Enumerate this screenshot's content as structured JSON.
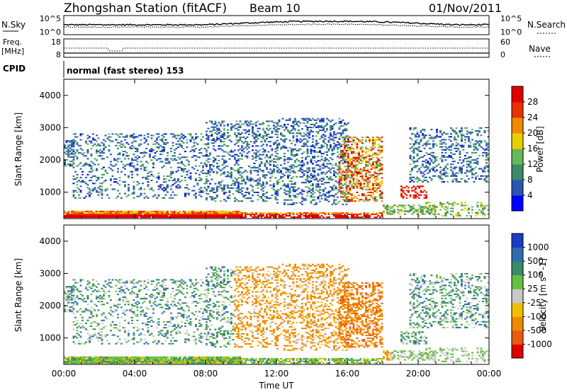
{
  "header": {
    "title": "Zhongshan Station (fitACF)",
    "beam": "Beam 10",
    "date": "01/Nov/2011"
  },
  "top_panels": {
    "nsky": {
      "left_label": "N.Sky",
      "left_ticks": [
        "10^5",
        "10^0"
      ],
      "right_ticks": [
        "10^5",
        "10^0"
      ],
      "right_label": "N.Search"
    },
    "freq": {
      "left_label_line1": "Freq.",
      "left_label_line2": "[MHz]",
      "left_ticks": [
        "18",
        "8"
      ],
      "right_ticks": [
        "60",
        "0"
      ],
      "right_label": "Nave"
    },
    "cpid": {
      "label": "CPID",
      "value": "normal (fast stereo) 153"
    }
  },
  "chart_data": [
    {
      "type": "heatmap",
      "panel": "power",
      "ylabel": "Slant Range [km]",
      "yticks": [
        1000,
        2000,
        3000,
        4000
      ],
      "ylim": [
        180,
        4500
      ],
      "xticks": [
        "00:00",
        "04:00",
        "08:00",
        "12:00",
        "16:00",
        "20:00",
        "00:00"
      ],
      "xlim_hours": [
        0,
        24
      ],
      "colorbar": {
        "label": "Power [dB]",
        "ticks": [
          "4",
          "8",
          "12",
          "16",
          "20",
          "24",
          "28"
        ],
        "colors": [
          "#0000ff",
          "#2b55b4",
          "#3a8a6a",
          "#66b85a",
          "#e8d000",
          "#f08a00",
          "#e83000",
          "#e00000"
        ],
        "range": [
          0,
          32
        ]
      }
    },
    {
      "type": "heatmap",
      "panel": "velocity",
      "ylabel": "Slant Range [km]",
      "yticks": [
        1000,
        2000,
        3000,
        4000
      ],
      "ylim": [
        180,
        4500
      ],
      "xlabel": "Time UT",
      "xticks": [
        "00:00",
        "04:00",
        "08:00",
        "12:00",
        "16:00",
        "20:00",
        "00:00"
      ],
      "xlim_hours": [
        0,
        24
      ],
      "colorbar": {
        "label": "Velocity [m s^-1]",
        "ticks": [
          "1000",
          "500",
          "100",
          "25",
          "-25",
          "-100",
          "-500",
          "-1000"
        ],
        "colors": [
          "#1a3cc8",
          "#2f6db0",
          "#3a8a6a",
          "#66c040",
          "#c8c8c8",
          "#f0c000",
          "#f08a00",
          "#e85a10",
          "#e00000"
        ]
      }
    }
  ],
  "colors": {
    "frame": "#000000",
    "background": "#ffffff",
    "ground_scatter": "#aaaaaa"
  }
}
